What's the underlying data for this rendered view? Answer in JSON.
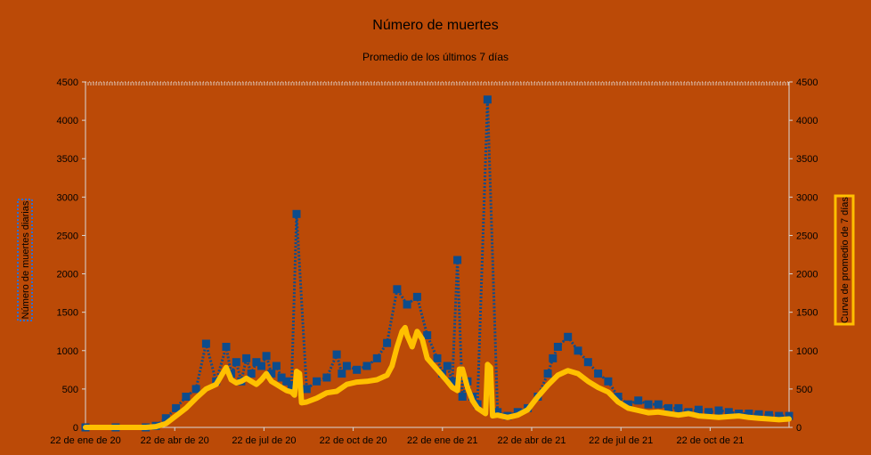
{
  "chart_data": {
    "type": "line",
    "title": "Número de  muertes",
    "subtitle": "Promedio de los últimos 7 días",
    "ylabel_left": "Número de muertes diarias",
    "ylabel_right": "Curva de promedio de 7 días",
    "ylim": [
      0,
      4500
    ],
    "yticks": [
      "0",
      "500",
      "1000",
      "1500",
      "2000",
      "2500",
      "3000",
      "3500",
      "4000",
      "4500"
    ],
    "xticks": [
      "22 de ene de 20",
      "22 de abr de 20",
      "22 de jul de 20",
      "22 de oct de 20",
      "22 de ene de 21",
      "22 de abr de 21",
      "22 de jul de 21",
      "22 de oct de 21"
    ],
    "grid": false,
    "colors": {
      "background": "#bb4a07",
      "daily": "#0d4c8c",
      "average": "#ffc000"
    },
    "series": [
      {
        "name": "Número de muertes diarias",
        "style": "square-markers",
        "x": [
          0,
          30,
          60,
          70,
          80,
          90,
          100,
          110,
          120,
          130,
          140,
          145,
          150,
          155,
          160,
          165,
          170,
          175,
          180,
          185,
          190,
          195,
          200,
          205,
          210,
          220,
          230,
          240,
          250,
          255,
          260,
          270,
          280,
          290,
          300,
          310,
          320,
          330,
          340,
          350,
          355,
          360,
          365,
          370,
          375,
          380,
          385,
          390,
          400,
          410,
          420,
          430,
          440,
          450,
          460,
          465,
          470,
          480,
          490,
          500,
          510,
          520,
          530,
          540,
          550,
          560,
          570,
          580,
          590,
          600,
          610,
          620,
          630,
          640,
          650,
          660,
          670,
          680,
          690,
          700
        ],
        "y": [
          0,
          0,
          0,
          20,
          120,
          250,
          400,
          500,
          1090,
          600,
          1050,
          700,
          850,
          600,
          900,
          700,
          850,
          800,
          930,
          700,
          800,
          650,
          600,
          550,
          2780,
          500,
          600,
          650,
          950,
          700,
          800,
          750,
          800,
          900,
          1100,
          1800,
          1600,
          1700,
          1200,
          900,
          700,
          800,
          600,
          2180,
          400,
          600,
          400,
          300,
          4270,
          200,
          150,
          200,
          250,
          400,
          700,
          900,
          1050,
          1180,
          1000,
          850,
          700,
          600,
          400,
          300,
          350,
          300,
          300,
          250,
          250,
          200,
          230,
          200,
          220,
          200,
          180,
          180,
          170,
          160,
          150,
          150
        ]
      },
      {
        "name": "Curva de promedio de 7 días",
        "style": "line",
        "x": [
          0,
          30,
          60,
          70,
          80,
          90,
          100,
          110,
          120,
          130,
          140,
          145,
          150,
          155,
          160,
          165,
          170,
          175,
          180,
          185,
          190,
          195,
          200,
          205,
          208,
          210,
          213,
          215,
          220,
          230,
          240,
          250,
          260,
          270,
          280,
          290,
          300,
          305,
          310,
          315,
          318,
          320,
          325,
          330,
          335,
          340,
          350,
          360,
          365,
          370,
          372,
          375,
          380,
          385,
          390,
          398,
          400,
          403,
          405,
          410,
          420,
          430,
          440,
          450,
          460,
          470,
          480,
          490,
          500,
          510,
          520,
          530,
          540,
          550,
          560,
          570,
          580,
          590,
          600,
          610,
          620,
          630,
          640,
          650,
          660,
          670,
          680,
          690,
          700
        ],
        "y": [
          0,
          0,
          0,
          10,
          50,
          150,
          250,
          380,
          500,
          560,
          780,
          620,
          580,
          600,
          640,
          600,
          560,
          620,
          700,
          600,
          560,
          520,
          480,
          460,
          420,
          730,
          700,
          320,
          330,
          380,
          450,
          470,
          560,
          590,
          600,
          620,
          680,
          800,
          1050,
          1250,
          1300,
          1200,
          1050,
          1250,
          1150,
          900,
          750,
          600,
          520,
          480,
          760,
          760,
          520,
          350,
          250,
          180,
          820,
          780,
          150,
          160,
          130,
          160,
          230,
          400,
          550,
          680,
          740,
          700,
          600,
          520,
          460,
          330,
          250,
          220,
          190,
          200,
          180,
          160,
          180,
          150,
          140,
          130,
          140,
          150,
          130,
          120,
          110,
          100,
          110
        ]
      }
    ]
  }
}
